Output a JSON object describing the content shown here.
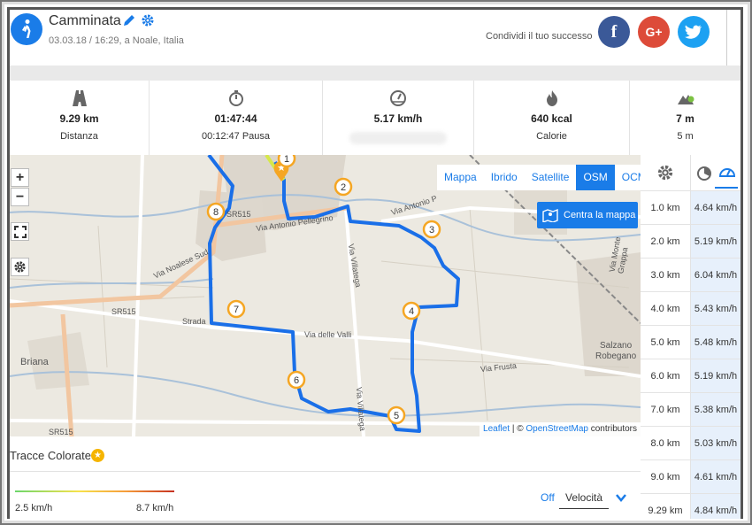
{
  "header": {
    "title": "Camminata",
    "subtitle": "03.03.18 / 16:29, a Noale, Italia",
    "share_label": "Condividi il tuo successo",
    "social": {
      "facebook": "f",
      "google": "G+",
      "twitter": "twitter-bird-icon"
    }
  },
  "stats": [
    {
      "icon": "road-icon",
      "value": "9.29 km",
      "label": "Distanza"
    },
    {
      "icon": "stopwatch-icon",
      "value": "01:47:44",
      "label": "00:12:47 Pausa"
    },
    {
      "icon": "speedometer-icon",
      "value": "5.17 km/h",
      "label": ""
    },
    {
      "icon": "flame-icon",
      "value": "640 kcal",
      "label": "Calorie"
    },
    {
      "icon": "mountain-icon",
      "value": "7 m",
      "label": "5 m"
    }
  ],
  "map": {
    "zoom_in": "+",
    "zoom_out": "−",
    "layers": [
      "Mappa",
      "Ibrido",
      "Satellite",
      "OSM",
      "OCM"
    ],
    "active_layer": "OSM",
    "center_button": "Centra la mappa",
    "attribution_leaflet": "Leaflet",
    "attribution_sep": " | © ",
    "attribution_osm": "OpenStreetMap",
    "attribution_contrib": " contributors",
    "route_color": "#1a6fe8",
    "markers": [
      "1",
      "2",
      "3",
      "4",
      "5",
      "6",
      "7",
      "8"
    ],
    "labels": {
      "sr515_a": "SR515",
      "sr515_b": "SR515",
      "sr515_c": "SR515",
      "via_noalese": "Via Noalese Sud",
      "via_antonio": "Via Antonio Pellegrino",
      "via_antonio2": "Via Antonio P",
      "strada": "Strada",
      "via_delle_valli": "Via delle Valli",
      "via_villatega": "Via Villatega",
      "via_villatega2": "Via Villatega",
      "via_frusta": "Via Frusta",
      "via_monte_grappa": "Via Monte Grappa",
      "briana": "Briana",
      "salzano": "Salzano",
      "robegano": "Robegano"
    }
  },
  "splits": {
    "rows": [
      {
        "km": "1.0 km",
        "speed": "4.64 km/h"
      },
      {
        "km": "2.0 km",
        "speed": "5.19 km/h"
      },
      {
        "km": "3.0 km",
        "speed": "6.04 km/h"
      },
      {
        "km": "4.0 km",
        "speed": "5.43 km/h"
      },
      {
        "km": "5.0 km",
        "speed": "5.48 km/h"
      },
      {
        "km": "6.0 km",
        "speed": "5.19 km/h"
      },
      {
        "km": "7.0 km",
        "speed": "5.38 km/h"
      },
      {
        "km": "8.0 km",
        "speed": "5.03 km/h"
      },
      {
        "km": "9.0 km",
        "speed": "4.61 km/h"
      },
      {
        "km": "9.29 km",
        "speed": "4.84 km/h"
      }
    ]
  },
  "tracce": {
    "label": "Tracce Colorate",
    "min": "2.5 km/h",
    "max": "8.7 km/h",
    "off": "Off",
    "mode": "Velocità"
  },
  "colors": {
    "accent": "#1a7ce8",
    "facebook": "#3b5998",
    "google": "#dd4b39",
    "twitter": "#1da1f2"
  }
}
